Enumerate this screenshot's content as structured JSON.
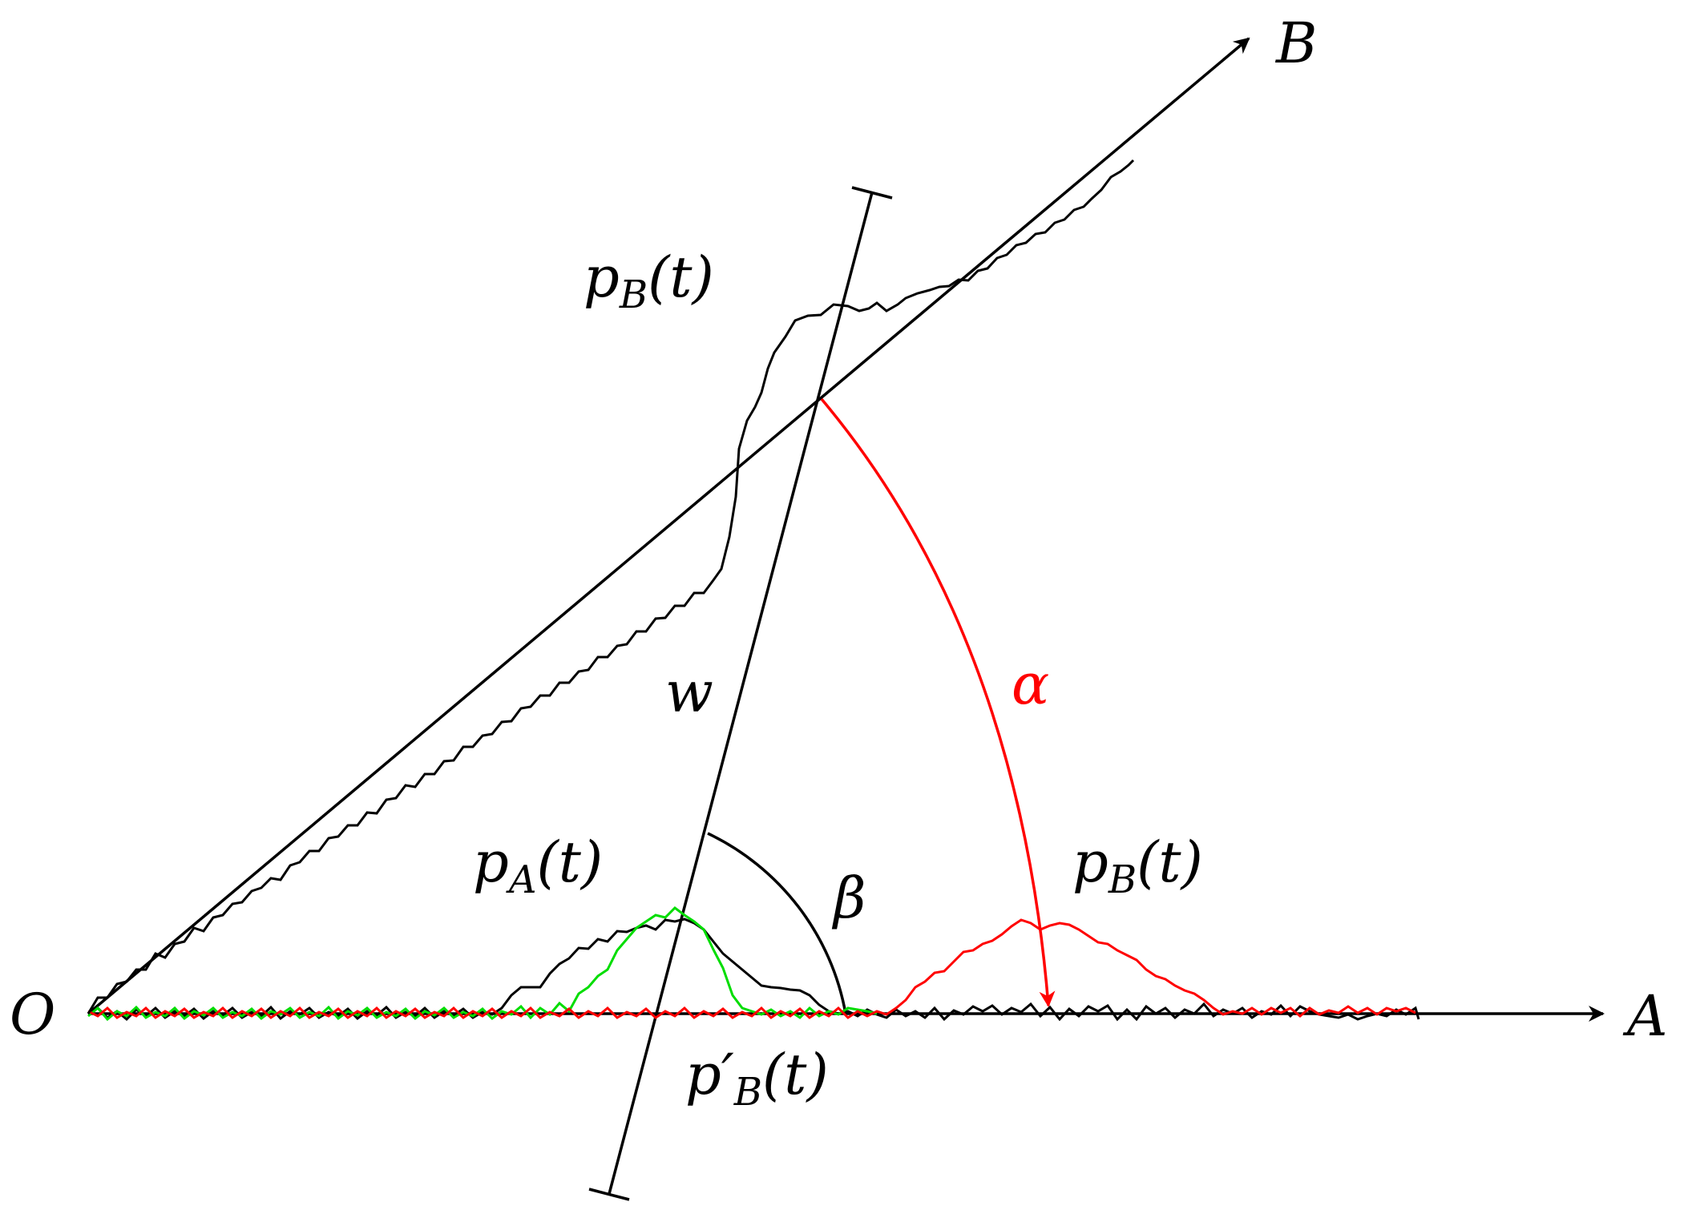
{
  "labels": {
    "origin": "O",
    "axis_a": "A",
    "axis_b": "B",
    "w": "w",
    "alpha": "α",
    "beta": "β",
    "p_b_top": {
      "base": "p",
      "sub": "B",
      "arg": "(t)"
    },
    "p_a": {
      "base": "p",
      "sub": "A",
      "arg": "(t)"
    },
    "p_b_right": {
      "base": "p",
      "sub": "B",
      "arg": "(t)"
    },
    "p_prime_b": {
      "base": "p",
      "prime": "′",
      "sub": "B",
      "arg": "(t)"
    }
  },
  "colors": {
    "axes": "#000000",
    "projection_original": "#000000",
    "projection_rotated": "#ff0000",
    "projection_target": "#00dd00",
    "alpha_arc": "#ff0000"
  }
}
